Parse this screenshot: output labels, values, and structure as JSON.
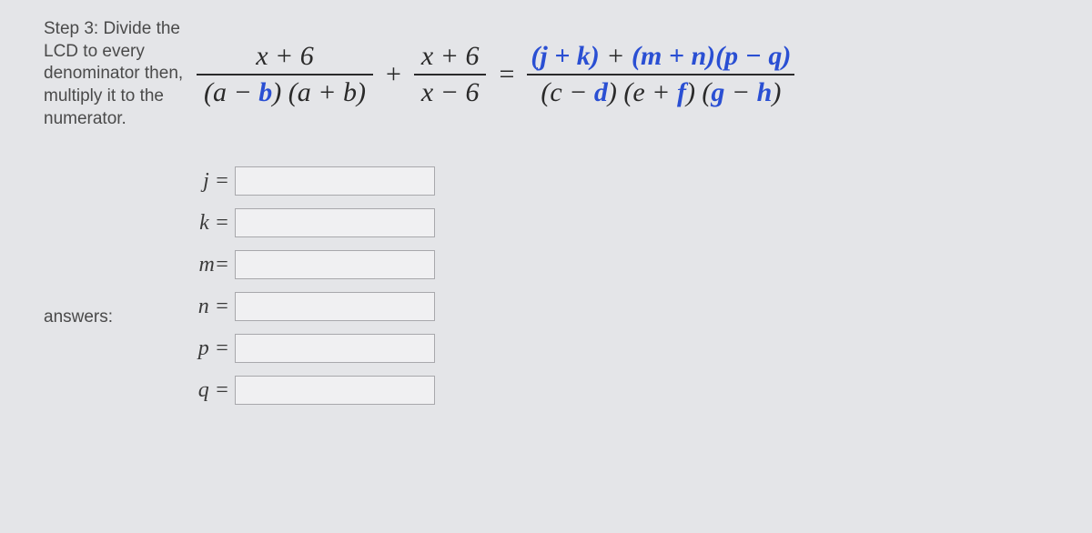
{
  "step": {
    "title": "Step 3: Divide the LCD to every denominator then, multiply it to the numerator."
  },
  "equation": {
    "frac1": {
      "num": "x + 6",
      "den_left": "(a − ",
      "den_b": "b",
      "den_mid": ") (a + ",
      "den_b2": "b",
      "den_right": ")"
    },
    "plus": "+",
    "frac2": {
      "num": "x + 6",
      "den": "x − 6"
    },
    "equals": "=",
    "frac3": {
      "num": {
        "jk": "(j + k)",
        "plus": " + ",
        "mn": "(m + n)",
        "pq": "(p − q)"
      },
      "den": {
        "open1": "(c − ",
        "d": "d",
        "close1": ") (e + ",
        "f": "f",
        "close2": ") (",
        "g": "g",
        "minus": " − ",
        "h": "h",
        "close3": ")"
      }
    }
  },
  "answers": {
    "label": "answers:",
    "fields": [
      {
        "name": "j",
        "label": "j =",
        "value": ""
      },
      {
        "name": "k",
        "label": "k =",
        "value": ""
      },
      {
        "name": "m",
        "label": "m=",
        "value": ""
      },
      {
        "name": "n",
        "label": "n =",
        "value": ""
      },
      {
        "name": "p",
        "label": "p =",
        "value": ""
      },
      {
        "name": "q",
        "label": "q =",
        "value": ""
      }
    ]
  },
  "colors": {
    "bg": "#e4e5e8",
    "text": "#4a4a4a",
    "math": "#2a2a2a",
    "blue": "#2a4fd3",
    "input_bg": "#f0f0f2",
    "input_border": "#a8a8ac"
  }
}
